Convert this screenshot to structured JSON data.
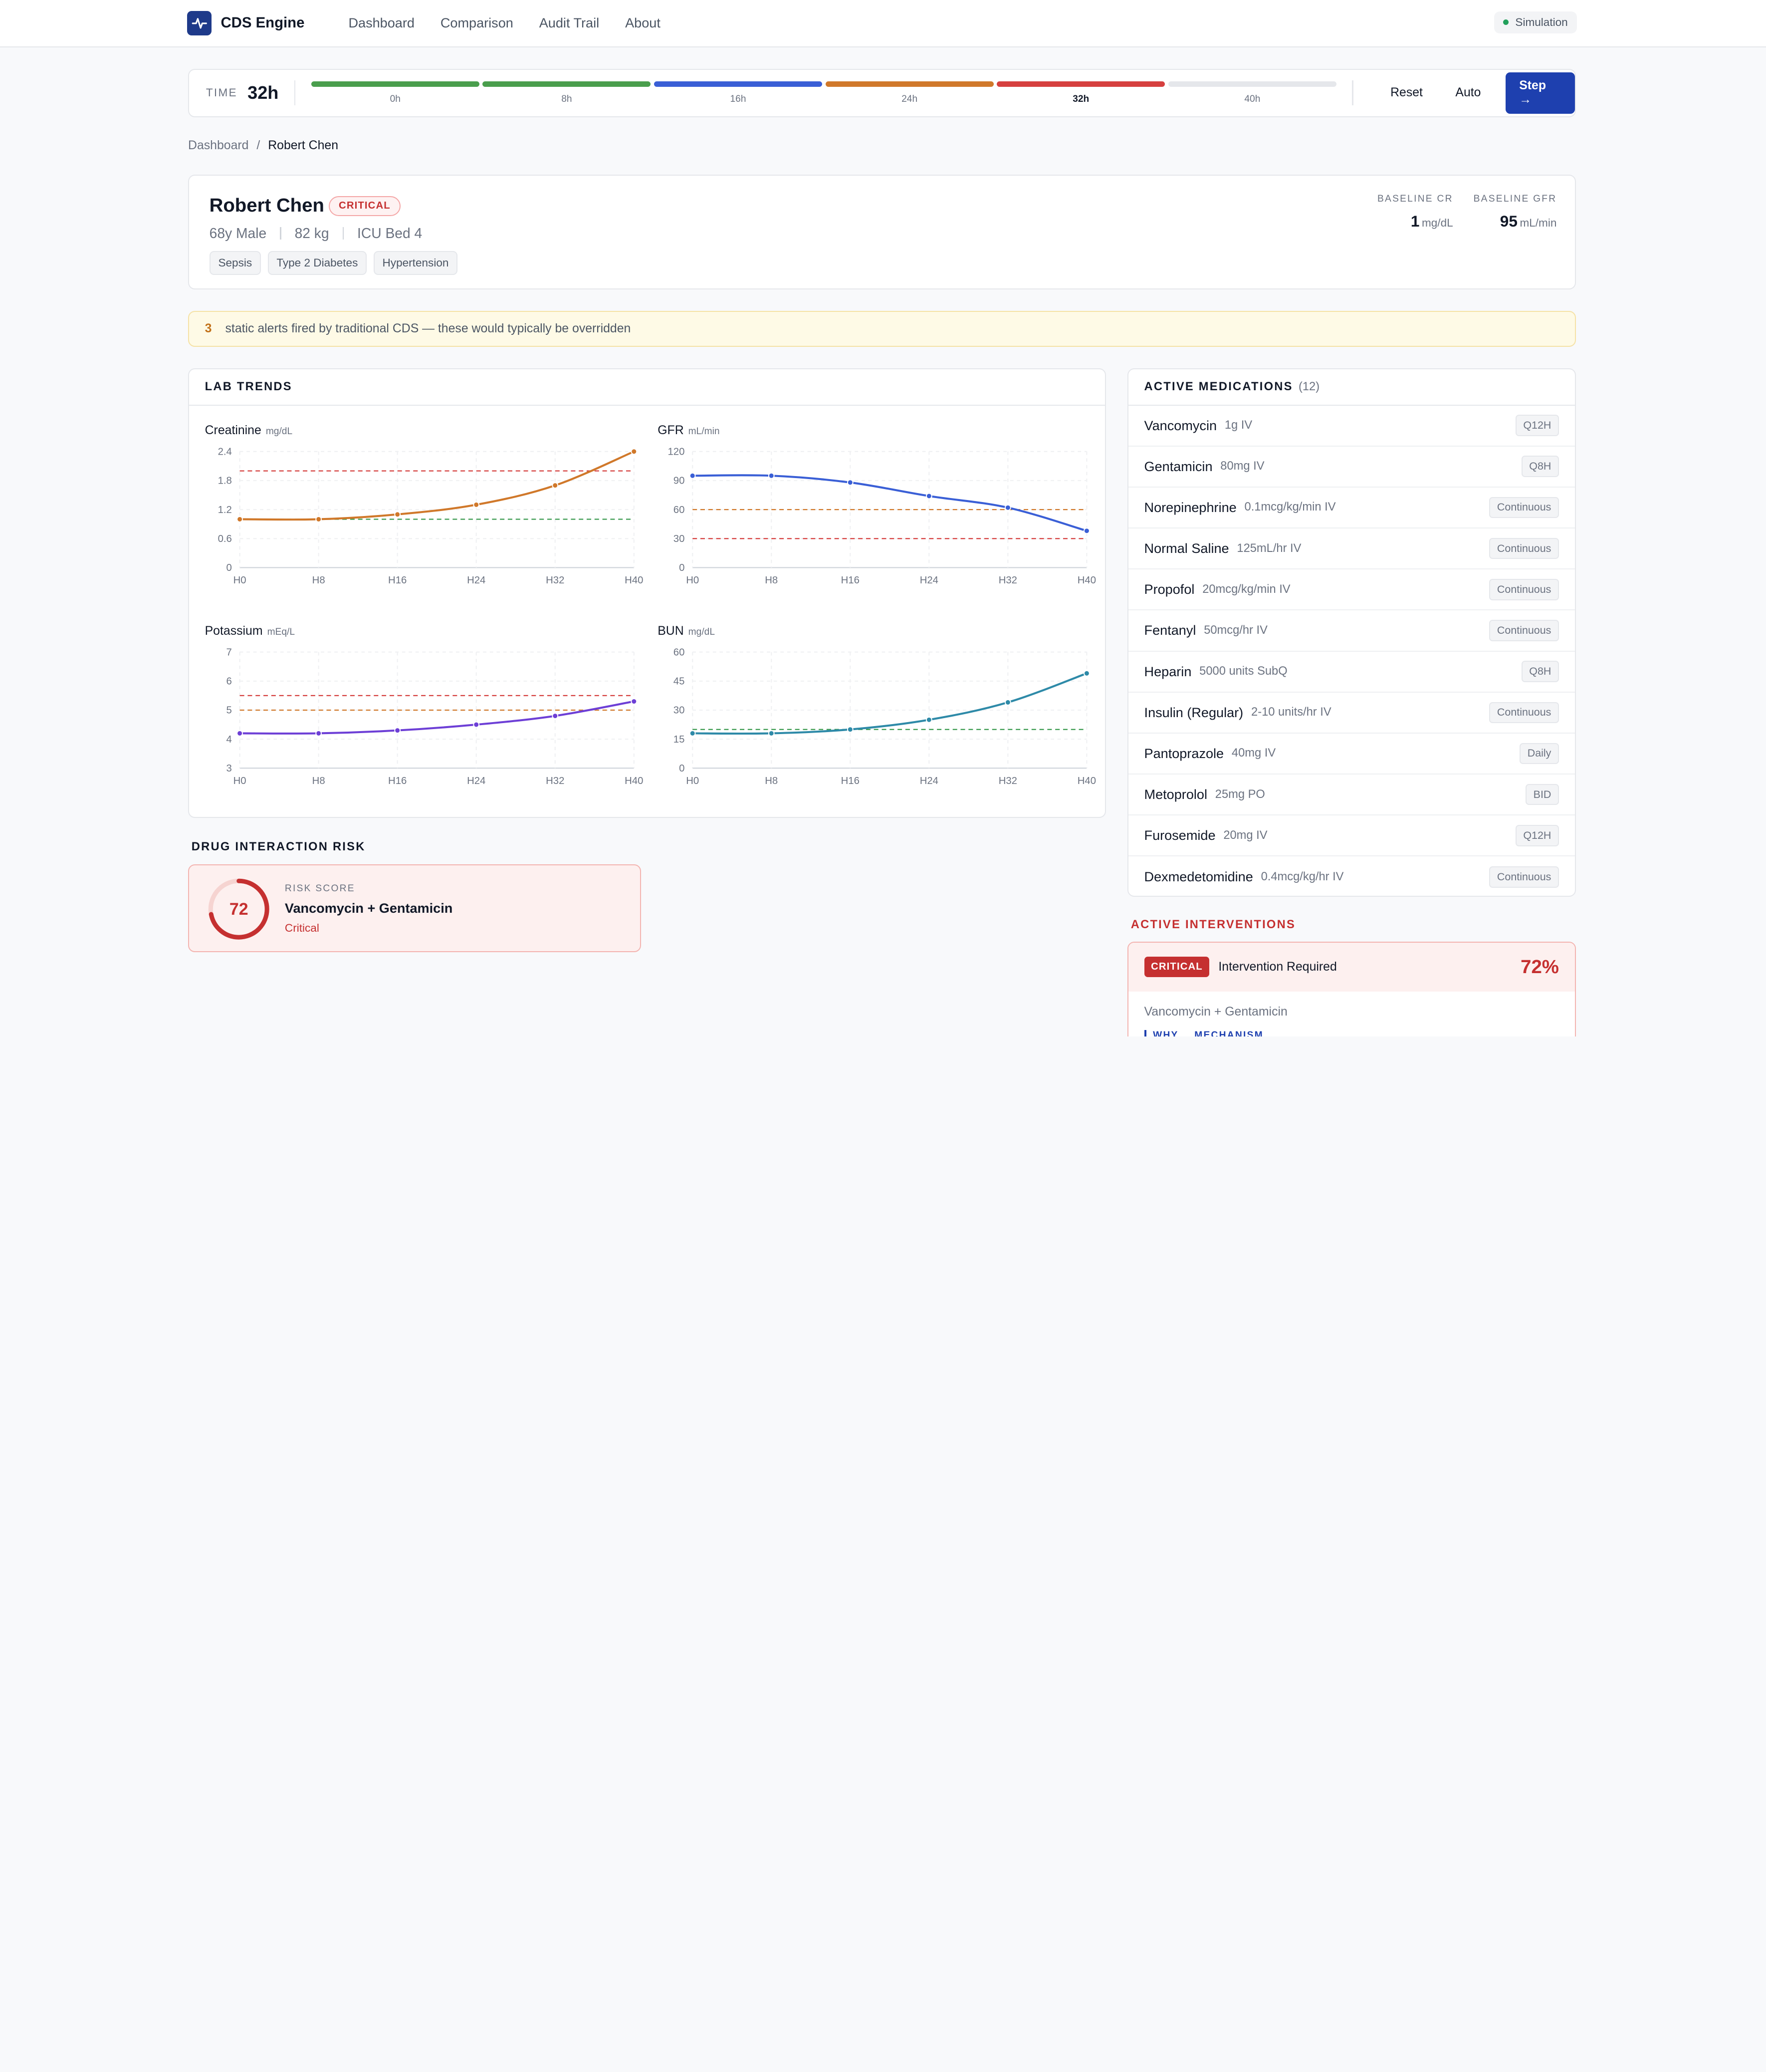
{
  "nav": {
    "brand": "CDS Engine",
    "links": [
      "Dashboard",
      "Comparison",
      "Audit Trail",
      "About"
    ],
    "mode": "Simulation"
  },
  "timebar": {
    "label": "TIME",
    "current": "32h",
    "segments": [
      {
        "label": "0h",
        "color": "#4a9e4d",
        "active": false
      },
      {
        "label": "8h",
        "color": "#4a9e4d",
        "active": false
      },
      {
        "label": "16h",
        "color": "#3a5fd6",
        "active": false
      },
      {
        "label": "24h",
        "color": "#d0782a",
        "active": false
      },
      {
        "label": "32h",
        "color": "#d6403f",
        "active": true
      },
      {
        "label": "40h",
        "color": "#e5e7eb",
        "active": false
      }
    ],
    "reset": "Reset",
    "auto": "Auto",
    "step": "Step →"
  },
  "breadcrumb": {
    "root": "Dashboard",
    "sep": "/",
    "current": "Robert Chen"
  },
  "patient": {
    "name": "Robert Chen",
    "status": "CRITICAL",
    "age_sex": "68y Male",
    "weight": "82 kg",
    "location": "ICU Bed 4",
    "conditions": [
      "Sepsis",
      "Type 2 Diabetes",
      "Hypertension"
    ],
    "baseline_cr_label": "BASELINE CR",
    "baseline_cr": "1",
    "baseline_cr_unit": "mg/dL",
    "baseline_gfr_label": "BASELINE GFR",
    "baseline_gfr": "95",
    "baseline_gfr_unit": "mL/min"
  },
  "alert": {
    "count": "3",
    "text": "static alerts fired by traditional CDS — these would typically be overridden"
  },
  "labs": {
    "title": "LAB TRENDS",
    "x_labels": [
      "H0",
      "H8",
      "H16",
      "H24",
      "H32",
      "H40"
    ],
    "charts": [
      {
        "name": "Creatinine",
        "unit": "mg/dL",
        "color": "#d0782a",
        "y_ticks": [
          0,
          0.6,
          1.2,
          1.8,
          2.4
        ],
        "y_min": 0,
        "y_max": 2.4,
        "values": [
          1.0,
          1.0,
          1.1,
          1.3,
          1.7,
          2.4
        ],
        "thresholds": [
          {
            "value": 2.0,
            "color": "#d6403f"
          },
          {
            "value": 1.0,
            "color": "#3a9a4f"
          }
        ]
      },
      {
        "name": "GFR",
        "unit": "mL/min",
        "color": "#3a5fd6",
        "y_ticks": [
          0,
          30,
          60,
          90,
          120
        ],
        "y_min": 0,
        "y_max": 120,
        "values": [
          95,
          95,
          88,
          74,
          62,
          38
        ],
        "thresholds": [
          {
            "value": 60,
            "color": "#d0782a"
          },
          {
            "value": 30,
            "color": "#d6403f"
          }
        ]
      },
      {
        "name": "Potassium",
        "unit": "mEq/L",
        "color": "#6d3fd6",
        "y_ticks": [
          3,
          4,
          5,
          6,
          7
        ],
        "y_min": 3,
        "y_max": 7,
        "values": [
          4.2,
          4.2,
          4.3,
          4.5,
          4.8,
          5.3
        ],
        "thresholds": [
          {
            "value": 5.5,
            "color": "#d6403f"
          },
          {
            "value": 5.0,
            "color": "#d0782a"
          }
        ]
      },
      {
        "name": "BUN",
        "unit": "mg/dL",
        "color": "#2e8aa8",
        "y_ticks": [
          0,
          15,
          30,
          45,
          60
        ],
        "y_min": 0,
        "y_max": 60,
        "values": [
          18,
          18,
          20,
          25,
          34,
          49
        ],
        "thresholds": [
          {
            "value": 20,
            "color": "#3a9a4f"
          }
        ]
      }
    ]
  },
  "medications": {
    "title": "ACTIVE MEDICATIONS",
    "count": "(12)",
    "items": [
      {
        "name": "Vancomycin",
        "dose": "1g IV",
        "freq": "Q12H"
      },
      {
        "name": "Gentamicin",
        "dose": "80mg IV",
        "freq": "Q8H"
      },
      {
        "name": "Norepinephrine",
        "dose": "0.1mcg/kg/min IV",
        "freq": "Continuous"
      },
      {
        "name": "Normal Saline",
        "dose": "125mL/hr IV",
        "freq": "Continuous"
      },
      {
        "name": "Propofol",
        "dose": "20mcg/kg/min IV",
        "freq": "Continuous"
      },
      {
        "name": "Fentanyl",
        "dose": "50mcg/hr IV",
        "freq": "Continuous"
      },
      {
        "name": "Heparin",
        "dose": "5000 units SubQ",
        "freq": "Q8H"
      },
      {
        "name": "Insulin (Regular)",
        "dose": "2-10 units/hr IV",
        "freq": "Continuous"
      },
      {
        "name": "Pantoprazole",
        "dose": "40mg IV",
        "freq": "Daily"
      },
      {
        "name": "Metoprolol",
        "dose": "25mg PO",
        "freq": "BID"
      },
      {
        "name": "Furosemide",
        "dose": "20mg IV",
        "freq": "Q12H"
      },
      {
        "name": "Dexmedetomidine",
        "dose": "0.4mcg/kg/hr IV",
        "freq": "Continuous"
      }
    ]
  },
  "risk": {
    "section_title": "DRUG INTERACTION RISK",
    "score": "72",
    "score_fraction": 0.72,
    "label": "RISK SCORE",
    "pair": "Vancomycin + Gentamicin",
    "severity": "Critical"
  },
  "interventions": {
    "section_title": "ACTIVE INTERVENTIONS",
    "badge": "CRITICAL",
    "label": "Intervention Required",
    "percent": "72%",
    "pair": "Vancomycin + Gentamicin",
    "tabs": [
      "WHY",
      "MECHANISM"
    ]
  }
}
